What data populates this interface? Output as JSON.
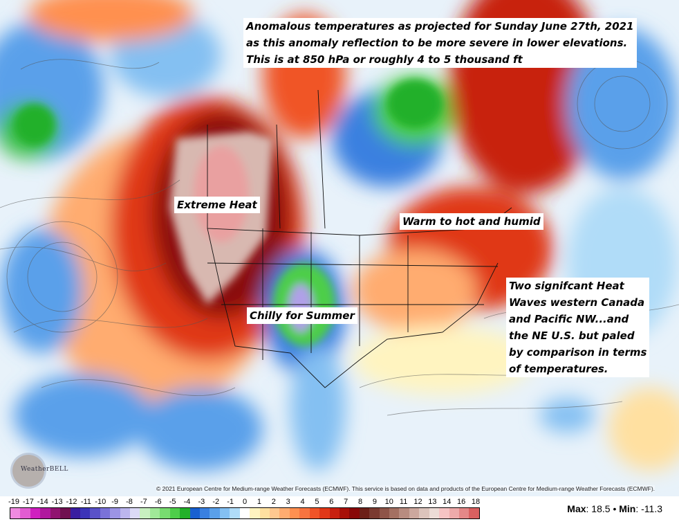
{
  "annotations": {
    "title_lines": [
      "Anomalous temperatures as projected for Sunday June 27th, 2021",
      "as this anomaly reflection to be more severe in lower elevations.",
      "This is at 850 hPa or roughly 4 to 5 thousand ft"
    ],
    "extreme_heat": "Extreme Heat",
    "warm_humid": "Warm to hot and humid",
    "chilly": "Chilly for Summer",
    "summary_lines": [
      "Two signifcant Heat",
      "Waves western Canada",
      "and Pacific NW...and",
      "the NE U.S. but paled",
      "by comparison in terms",
      "of temperatures."
    ]
  },
  "copyright": "© 2021 European Centre for Medium-range Weather Forecasts (ECMWF). This service is based on data and products of the European Centre for Medium-range Weather Forecasts (ECMWF).",
  "logo": "WeatherBELL",
  "legend": {
    "ticks": [
      "-19",
      "-17",
      "-14",
      "-13",
      "-12",
      "-11",
      "-10",
      "-9",
      "-8",
      "-7",
      "-6",
      "-5",
      "-4",
      "-3",
      "-2",
      "-1",
      "0",
      "1",
      "2",
      "3",
      "4",
      "5",
      "6",
      "7",
      "8",
      "9",
      "10",
      "11",
      "12",
      "13",
      "14",
      "16",
      "18"
    ],
    "colors": [
      "#f08ae0",
      "#e25cd2",
      "#d020c0",
      "#b0189e",
      "#901470",
      "#701050",
      "#3a1ea0",
      "#3c34b8",
      "#5a52c8",
      "#7a72d8",
      "#9c94e4",
      "#bcb6ee",
      "#dcdaf6",
      "#c8f0c0",
      "#a0e898",
      "#78dc70",
      "#4ece4a",
      "#22b02a",
      "#1860d0",
      "#3a80e0",
      "#5aa0ea",
      "#84c0f2",
      "#b0dcf8",
      "#ffffff",
      "#fff4c0",
      "#ffe0a0",
      "#ffc890",
      "#ffac70",
      "#ff9050",
      "#f87440",
      "#f05428",
      "#e03818",
      "#c82010",
      "#a81008",
      "#880808",
      "#6c2018",
      "#7a3a30",
      "#8e5448",
      "#a47062",
      "#b88c80",
      "#cca89e",
      "#dcc4bc",
      "#ecdcd6",
      "#f6c4c4",
      "#eeaaaa",
      "#e48888",
      "#d86060"
    ],
    "max_label": "Max",
    "max_value": "18.5",
    "separator": "•",
    "min_label": "Min",
    "min_value": "-11.3"
  }
}
